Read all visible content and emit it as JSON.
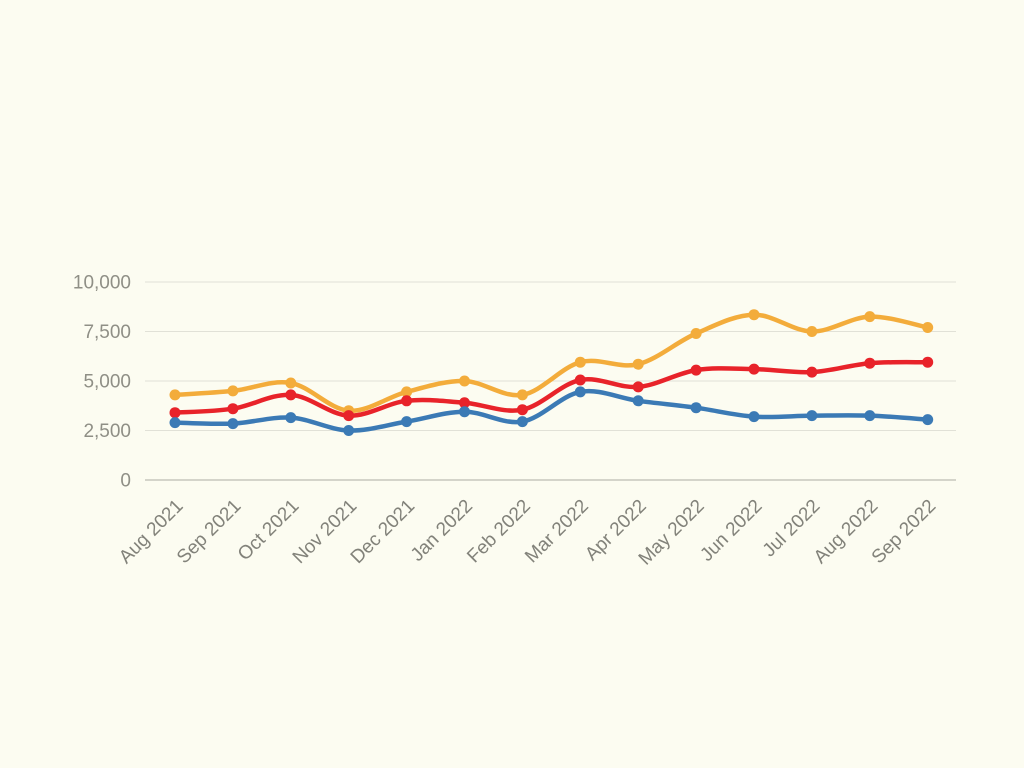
{
  "page": {
    "background_color": "#FCFCF1"
  },
  "chart_data": {
    "type": "line",
    "title": "",
    "xlabel": "",
    "ylabel": "",
    "categories": [
      "Aug 2021",
      "Sep 2021",
      "Oct 2021",
      "Nov 2021",
      "Dec 2021",
      "Jan 2022",
      "Feb 2022",
      "Mar 2022",
      "Apr 2022",
      "May 2022",
      "Jun 2022",
      "Jul 2022",
      "Aug 2022",
      "Sep 2022"
    ],
    "series": [
      {
        "id": "series-yellow",
        "color": "#F3AC3B",
        "values": [
          4300,
          4500,
          4900,
          3500,
          4450,
          5000,
          4300,
          5950,
          5850,
          7400,
          8350,
          7500,
          8250,
          7700
        ]
      },
      {
        "id": "series-red",
        "color": "#E8232A",
        "values": [
          3400,
          3600,
          4300,
          3250,
          4000,
          3900,
          3550,
          5050,
          4700,
          5550,
          5600,
          5450,
          5900,
          5950
        ]
      },
      {
        "id": "series-blue",
        "color": "#3B7AB5",
        "values": [
          2900,
          2850,
          3150,
          2500,
          2950,
          3450,
          2950,
          4450,
          4000,
          3650,
          3200,
          3250,
          3250,
          3050
        ]
      }
    ],
    "ylim": [
      0,
      10000
    ],
    "y_ticks": [
      {
        "value": 0,
        "label": "0"
      },
      {
        "value": 2500,
        "label": "2,500"
      },
      {
        "value": 5000,
        "label": "5,000"
      },
      {
        "value": 7500,
        "label": "7,500"
      },
      {
        "value": 10000,
        "label": "10,000"
      }
    ],
    "grid": true,
    "legend_position": "none"
  },
  "colors": {
    "background": "#FCFCF1",
    "gridline": "#E1E1D7",
    "zero_axis_line": "#ACACA4",
    "y_tick_label": "#8F8F86",
    "x_tick_label": "#82827A"
  }
}
